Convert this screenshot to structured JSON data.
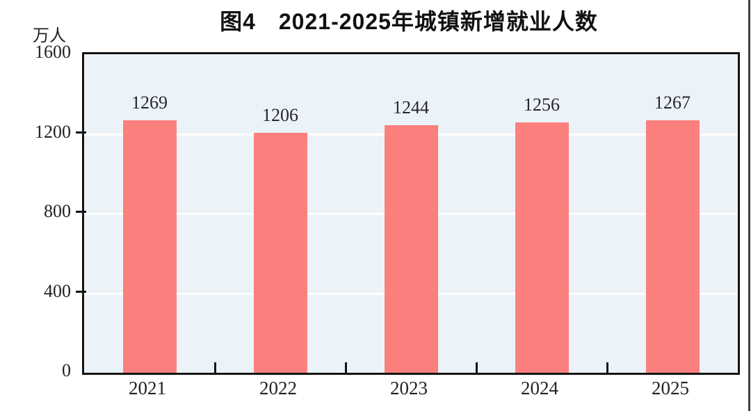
{
  "page": {
    "title": "图4　2021-2025年城镇新增就业人数"
  },
  "chart_data": {
    "type": "bar",
    "title": "图4　2021-2025年城镇新增就业人数",
    "ylabel_unit": "万人",
    "categories": [
      "2021",
      "2022",
      "2023",
      "2024",
      "2025"
    ],
    "values": [
      1269,
      1206,
      1244,
      1256,
      1267
    ],
    "value_labels": [
      "1269",
      "1206",
      "1244",
      "1256",
      "1267"
    ],
    "ylim": [
      0,
      1600
    ],
    "yticks": [
      0,
      400,
      800,
      1200,
      1600
    ],
    "grid": "horizontal-white-lines-at-yticks",
    "legend": "none",
    "colors": {
      "bar": "#FB807D",
      "plot_background": "#ECF3F8",
      "gridline": "#FFFFFF",
      "axis_border": "#141414",
      "label_text": "#222222",
      "title_text": "#111111"
    }
  }
}
